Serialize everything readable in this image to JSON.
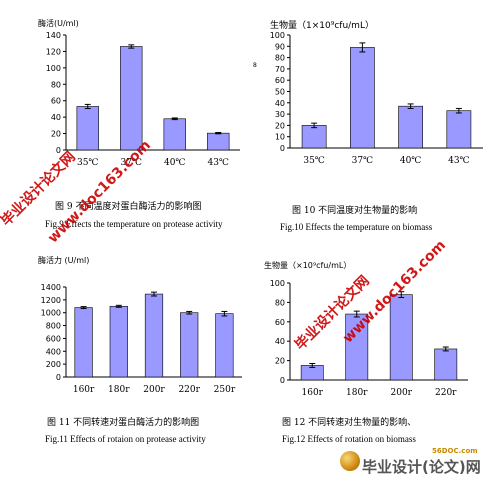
{
  "chart_data": [
    {
      "type": "bar",
      "ylabel": "酶活(U/ml)",
      "categories": [
        "35℃",
        "37℃",
        "40℃",
        "43℃"
      ],
      "values": [
        530,
        1260,
        380,
        205
      ],
      "errors": [
        25,
        20,
        10,
        8
      ],
      "yticks": [
        0,
        20,
        40,
        60,
        80,
        100,
        120,
        140
      ],
      "ylim": [
        0,
        1400
      ],
      "tick_scale": 10,
      "color": "#9999ff",
      "caption_cn": "图 9 不同温度对蛋白酶活力的影响图",
      "caption_en": "Fig.9 Effects the temperature on protease activity"
    },
    {
      "type": "bar",
      "ylabel": "生物量（1×10⁹cfu/mL）",
      "side_mark": "8",
      "categories": [
        "35℃",
        "37℃",
        "40℃",
        "43℃"
      ],
      "values": [
        20,
        89,
        37,
        33
      ],
      "errors": [
        2,
        4,
        2,
        2
      ],
      "yticks": [
        0,
        10,
        20,
        30,
        40,
        50,
        60,
        70,
        80,
        90,
        100
      ],
      "ylim": [
        0,
        100
      ],
      "tick_scale": 1,
      "color": "#9999ff",
      "caption_cn": "图 10 不同温度对生物量的影响",
      "caption_en": "Fig.10 Effects the temperature on biomass"
    },
    {
      "type": "bar",
      "ylabel": "酶活力 (U/ml)",
      "categories": [
        "160r",
        "180r",
        "200r",
        "220r",
        "250r"
      ],
      "values": [
        1080,
        1100,
        1290,
        1000,
        985
      ],
      "errors": [
        15,
        15,
        30,
        20,
        35
      ],
      "yticks": [
        0,
        200,
        400,
        600,
        800,
        1000,
        1200,
        1400
      ],
      "ylim": [
        0,
        1400
      ],
      "tick_scale": 1,
      "color": "#9999ff",
      "caption_cn": "图 11 不同转速对蛋白酶活力的影响图",
      "caption_en": "Fig.11 Effects of rotaion on protease activity"
    },
    {
      "type": "bar",
      "ylabel": "生物量（×10⁹cfu/mL）",
      "categories": [
        "160r",
        "180r",
        "200r",
        "220r"
      ],
      "values": [
        15,
        68,
        88,
        32
      ],
      "errors": [
        2,
        3,
        3,
        2
      ],
      "yticks": [
        0,
        20,
        40,
        60,
        80,
        100
      ],
      "ylim": [
        0,
        100
      ],
      "tick_scale": 1,
      "color": "#9999ff",
      "caption_cn": "图 12 不同转速对生物量的影响、",
      "caption_en": "Fig.12 Effects of rotation on biomass"
    }
  ],
  "watermarks": [
    "毕业设计论文网",
    "www.doc163.com",
    "毕业设计论文网",
    "www.doc163.com"
  ],
  "footer_logo": {
    "domain": "56DOC.com",
    "name": "毕业设计(论文)网"
  }
}
